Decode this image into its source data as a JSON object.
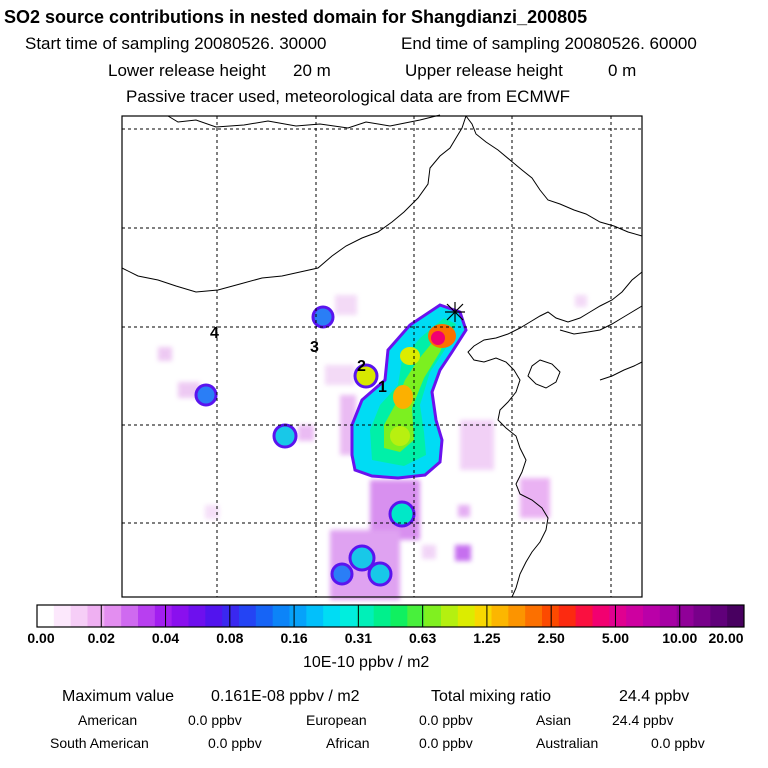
{
  "header": {
    "title": "SO2 source contributions in nested domain for Shangdianzi_200805",
    "start_label": "Start time of sampling 20080526. 30000",
    "end_label": "End time of sampling 20080526. 60000",
    "lower_label": "Lower release height",
    "lower_value": "20 m",
    "upper_label": "Upper release height",
    "upper_value": "0 m",
    "tracer_note": "Passive tracer used, meteorological data are from ECMWF"
  },
  "map": {
    "site_labels": [
      "1",
      "2",
      "3",
      "4"
    ],
    "receptor_marker": "star-cross-icon"
  },
  "colorbar": {
    "ticks": [
      "0.00",
      "0.02",
      "0.04",
      "0.08",
      "0.16",
      "0.31",
      "0.63",
      "1.25",
      "2.50",
      "5.00",
      "10.00",
      "20.00"
    ],
    "colors": [
      "#ffffff",
      "#fce8fc",
      "#f6cef7",
      "#efb0f2",
      "#e38ef0",
      "#cf6af0",
      "#b83ff0",
      "#a21ef0",
      "#8a10ee",
      "#6e10ee",
      "#5214ee",
      "#3a28f0",
      "#2444f4",
      "#1664f6",
      "#0c84f8",
      "#06a2fa",
      "#02c0fb",
      "#00dcf4",
      "#00eede",
      "#00f0b8",
      "#00f08c",
      "#10f060",
      "#48f03c",
      "#80f020",
      "#b4f010",
      "#dcec00",
      "#f8d800",
      "#fcb600",
      "#fc9400",
      "#fc7000",
      "#fc4a00",
      "#fc2a10",
      "#fa1040",
      "#f20070",
      "#e00090",
      "#ce00a0",
      "#ba00a8",
      "#a600a4",
      "#900098",
      "#78008a",
      "#60007a",
      "#480060"
    ],
    "units": "10E-10 ppbv / m2"
  },
  "summary": {
    "max_label": "Maximum value",
    "max_value": "0.161E-08 ppbv / m2",
    "total_label": "Total mixing ratio",
    "total_value": "24.4 ppbv",
    "regions": [
      {
        "name": "American",
        "value": "0.0 ppbv"
      },
      {
        "name": "European",
        "value": "0.0 ppbv"
      },
      {
        "name": "Asian",
        "value": "24.4 ppbv"
      },
      {
        "name": "South American",
        "value": "0.0 ppbv"
      },
      {
        "name": "African",
        "value": "0.0 ppbv"
      },
      {
        "name": "Australian",
        "value": "0.0 ppbv"
      }
    ]
  }
}
